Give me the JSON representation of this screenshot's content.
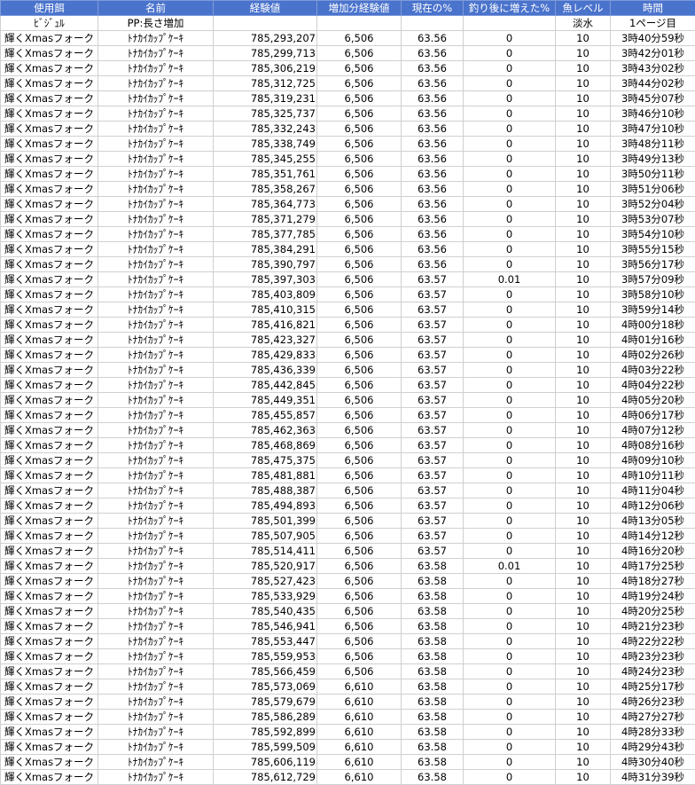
{
  "table": {
    "header": [
      "使用餌",
      "名前",
      "経験値",
      "増加分経験値",
      "現在の%",
      "釣り後に増えた%",
      "魚レベル",
      "時間"
    ],
    "subheader": {
      "bait": "ﾋﾞｼﾞｭﾙ",
      "name": "PP:長さ増加",
      "water": "淡水",
      "page": "1ページ目"
    },
    "rows": [
      [
        "輝くXmasフォーク",
        "ﾄﾅｶｲｶｯﾌﾟｹｰｷ",
        "785,293,207",
        "6,506",
        "63.56",
        "0",
        "10",
        "3時40分59秒"
      ],
      [
        "輝くXmasフォーク",
        "ﾄﾅｶｲｶｯﾌﾟｹｰｷ",
        "785,299,713",
        "6,506",
        "63.56",
        "0",
        "10",
        "3時42分01秒"
      ],
      [
        "輝くXmasフォーク",
        "ﾄﾅｶｲｶｯﾌﾟｹｰｷ",
        "785,306,219",
        "6,506",
        "63.56",
        "0",
        "10",
        "3時43分02秒"
      ],
      [
        "輝くXmasフォーク",
        "ﾄﾅｶｲｶｯﾌﾟｹｰｷ",
        "785,312,725",
        "6,506",
        "63.56",
        "0",
        "10",
        "3時44分02秒"
      ],
      [
        "輝くXmasフォーク",
        "ﾄﾅｶｲｶｯﾌﾟｹｰｷ",
        "785,319,231",
        "6,506",
        "63.56",
        "0",
        "10",
        "3時45分07秒"
      ],
      [
        "輝くXmasフォーク",
        "ﾄﾅｶｲｶｯﾌﾟｹｰｷ",
        "785,325,737",
        "6,506",
        "63.56",
        "0",
        "10",
        "3時46分10秒"
      ],
      [
        "輝くXmasフォーク",
        "ﾄﾅｶｲｶｯﾌﾟｹｰｷ",
        "785,332,243",
        "6,506",
        "63.56",
        "0",
        "10",
        "3時47分10秒"
      ],
      [
        "輝くXmasフォーク",
        "ﾄﾅｶｲｶｯﾌﾟｹｰｷ",
        "785,338,749",
        "6,506",
        "63.56",
        "0",
        "10",
        "3時48分11秒"
      ],
      [
        "輝くXmasフォーク",
        "ﾄﾅｶｲｶｯﾌﾟｹｰｷ",
        "785,345,255",
        "6,506",
        "63.56",
        "0",
        "10",
        "3時49分13秒"
      ],
      [
        "輝くXmasフォーク",
        "ﾄﾅｶｲｶｯﾌﾟｹｰｷ",
        "785,351,761",
        "6,506",
        "63.56",
        "0",
        "10",
        "3時50分11秒"
      ],
      [
        "輝くXmasフォーク",
        "ﾄﾅｶｲｶｯﾌﾟｹｰｷ",
        "785,358,267",
        "6,506",
        "63.56",
        "0",
        "10",
        "3時51分06秒"
      ],
      [
        "輝くXmasフォーク",
        "ﾄﾅｶｲｶｯﾌﾟｹｰｷ",
        "785,364,773",
        "6,506",
        "63.56",
        "0",
        "10",
        "3時52分04秒"
      ],
      [
        "輝くXmasフォーク",
        "ﾄﾅｶｲｶｯﾌﾟｹｰｷ",
        "785,371,279",
        "6,506",
        "63.56",
        "0",
        "10",
        "3時53分07秒"
      ],
      [
        "輝くXmasフォーク",
        "ﾄﾅｶｲｶｯﾌﾟｹｰｷ",
        "785,377,785",
        "6,506",
        "63.56",
        "0",
        "10",
        "3時54分10秒"
      ],
      [
        "輝くXmasフォーク",
        "ﾄﾅｶｲｶｯﾌﾟｹｰｷ",
        "785,384,291",
        "6,506",
        "63.56",
        "0",
        "10",
        "3時55分15秒"
      ],
      [
        "輝くXmasフォーク",
        "ﾄﾅｶｲｶｯﾌﾟｹｰｷ",
        "785,390,797",
        "6,506",
        "63.56",
        "0",
        "10",
        "3時56分17秒"
      ],
      [
        "輝くXmasフォーク",
        "ﾄﾅｶｲｶｯﾌﾟｹｰｷ",
        "785,397,303",
        "6,506",
        "63.57",
        "0.01",
        "10",
        "3時57分09秒"
      ],
      [
        "輝くXmasフォーク",
        "ﾄﾅｶｲｶｯﾌﾟｹｰｷ",
        "785,403,809",
        "6,506",
        "63.57",
        "0",
        "10",
        "3時58分10秒"
      ],
      [
        "輝くXmasフォーク",
        "ﾄﾅｶｲｶｯﾌﾟｹｰｷ",
        "785,410,315",
        "6,506",
        "63.57",
        "0",
        "10",
        "3時59分14秒"
      ],
      [
        "輝くXmasフォーク",
        "ﾄﾅｶｲｶｯﾌﾟｹｰｷ",
        "785,416,821",
        "6,506",
        "63.57",
        "0",
        "10",
        "4時00分18秒"
      ],
      [
        "輝くXmasフォーク",
        "ﾄﾅｶｲｶｯﾌﾟｹｰｷ",
        "785,423,327",
        "6,506",
        "63.57",
        "0",
        "10",
        "4時01分16秒"
      ],
      [
        "輝くXmasフォーク",
        "ﾄﾅｶｲｶｯﾌﾟｹｰｷ",
        "785,429,833",
        "6,506",
        "63.57",
        "0",
        "10",
        "4時02分26秒"
      ],
      [
        "輝くXmasフォーク",
        "ﾄﾅｶｲｶｯﾌﾟｹｰｷ",
        "785,436,339",
        "6,506",
        "63.57",
        "0",
        "10",
        "4時03分22秒"
      ],
      [
        "輝くXmasフォーク",
        "ﾄﾅｶｲｶｯﾌﾟｹｰｷ",
        "785,442,845",
        "6,506",
        "63.57",
        "0",
        "10",
        "4時04分22秒"
      ],
      [
        "輝くXmasフォーク",
        "ﾄﾅｶｲｶｯﾌﾟｹｰｷ",
        "785,449,351",
        "6,506",
        "63.57",
        "0",
        "10",
        "4時05分20秒"
      ],
      [
        "輝くXmasフォーク",
        "ﾄﾅｶｲｶｯﾌﾟｹｰｷ",
        "785,455,857",
        "6,506",
        "63.57",
        "0",
        "10",
        "4時06分17秒"
      ],
      [
        "輝くXmasフォーク",
        "ﾄﾅｶｲｶｯﾌﾟｹｰｷ",
        "785,462,363",
        "6,506",
        "63.57",
        "0",
        "10",
        "4時07分12秒"
      ],
      [
        "輝くXmasフォーク",
        "ﾄﾅｶｲｶｯﾌﾟｹｰｷ",
        "785,468,869",
        "6,506",
        "63.57",
        "0",
        "10",
        "4時08分16秒"
      ],
      [
        "輝くXmasフォーク",
        "ﾄﾅｶｲｶｯﾌﾟｹｰｷ",
        "785,475,375",
        "6,506",
        "63.57",
        "0",
        "10",
        "4時09分10秒"
      ],
      [
        "輝くXmasフォーク",
        "ﾄﾅｶｲｶｯﾌﾟｹｰｷ",
        "785,481,881",
        "6,506",
        "63.57",
        "0",
        "10",
        "4時10分11秒"
      ],
      [
        "輝くXmasフォーク",
        "ﾄﾅｶｲｶｯﾌﾟｹｰｷ",
        "785,488,387",
        "6,506",
        "63.57",
        "0",
        "10",
        "4時11分04秒"
      ],
      [
        "輝くXmasフォーク",
        "ﾄﾅｶｲｶｯﾌﾟｹｰｷ",
        "785,494,893",
        "6,506",
        "63.57",
        "0",
        "10",
        "4時12分06秒"
      ],
      [
        "輝くXmasフォーク",
        "ﾄﾅｶｲｶｯﾌﾟｹｰｷ",
        "785,501,399",
        "6,506",
        "63.57",
        "0",
        "10",
        "4時13分05秒"
      ],
      [
        "輝くXmasフォーク",
        "ﾄﾅｶｲｶｯﾌﾟｹｰｷ",
        "785,507,905",
        "6,506",
        "63.57",
        "0",
        "10",
        "4時14分12秒"
      ],
      [
        "輝くXmasフォーク",
        "ﾄﾅｶｲｶｯﾌﾟｹｰｷ",
        "785,514,411",
        "6,506",
        "63.57",
        "0",
        "10",
        "4時16分20秒"
      ],
      [
        "輝くXmasフォーク",
        "ﾄﾅｶｲｶｯﾌﾟｹｰｷ",
        "785,520,917",
        "6,506",
        "63.58",
        "0.01",
        "10",
        "4時17分25秒"
      ],
      [
        "輝くXmasフォーク",
        "ﾄﾅｶｲｶｯﾌﾟｹｰｷ",
        "785,527,423",
        "6,506",
        "63.58",
        "0",
        "10",
        "4時18分27秒"
      ],
      [
        "輝くXmasフォーク",
        "ﾄﾅｶｲｶｯﾌﾟｹｰｷ",
        "785,533,929",
        "6,506",
        "63.58",
        "0",
        "10",
        "4時19分24秒"
      ],
      [
        "輝くXmasフォーク",
        "ﾄﾅｶｲｶｯﾌﾟｹｰｷ",
        "785,540,435",
        "6,506",
        "63.58",
        "0",
        "10",
        "4時20分25秒"
      ],
      [
        "輝くXmasフォーク",
        "ﾄﾅｶｲｶｯﾌﾟｹｰｷ",
        "785,546,941",
        "6,506",
        "63.58",
        "0",
        "10",
        "4時21分23秒"
      ],
      [
        "輝くXmasフォーク",
        "ﾄﾅｶｲｶｯﾌﾟｹｰｷ",
        "785,553,447",
        "6,506",
        "63.58",
        "0",
        "10",
        "4時22分22秒"
      ],
      [
        "輝くXmasフォーク",
        "ﾄﾅｶｲｶｯﾌﾟｹｰｷ",
        "785,559,953",
        "6,506",
        "63.58",
        "0",
        "10",
        "4時23分23秒"
      ],
      [
        "輝くXmasフォーク",
        "ﾄﾅｶｲｶｯﾌﾟｹｰｷ",
        "785,566,459",
        "6,506",
        "63.58",
        "0",
        "10",
        "4時24分23秒"
      ],
      [
        "輝くXmasフォーク",
        "ﾄﾅｶｲｶｯﾌﾟｹｰｷ",
        "785,573,069",
        "6,610",
        "63.58",
        "0",
        "10",
        "4時25分17秒"
      ],
      [
        "輝くXmasフォーク",
        "ﾄﾅｶｲｶｯﾌﾟｹｰｷ",
        "785,579,679",
        "6,610",
        "63.58",
        "0",
        "10",
        "4時26分23秒"
      ],
      [
        "輝くXmasフォーク",
        "ﾄﾅｶｲｶｯﾌﾟｹｰｷ",
        "785,586,289",
        "6,610",
        "63.58",
        "0",
        "10",
        "4時27分27秒"
      ],
      [
        "輝くXmasフォーク",
        "ﾄﾅｶｲｶｯﾌﾟｹｰｷ",
        "785,592,899",
        "6,610",
        "63.58",
        "0",
        "10",
        "4時28分33秒"
      ],
      [
        "輝くXmasフォーク",
        "ﾄﾅｶｲｶｯﾌﾟｹｰｷ",
        "785,599,509",
        "6,610",
        "63.58",
        "0",
        "10",
        "4時29分43秒"
      ],
      [
        "輝くXmasフォーク",
        "ﾄﾅｶｲｶｯﾌﾟｹｰｷ",
        "785,606,119",
        "6,610",
        "63.58",
        "0",
        "10",
        "4時30分40秒"
      ],
      [
        "輝くXmasフォーク",
        "ﾄﾅｶｲｶｯﾌﾟｹｰｷ",
        "785,612,729",
        "6,610",
        "63.58",
        "0",
        "10",
        "4時31分39秒"
      ]
    ]
  }
}
